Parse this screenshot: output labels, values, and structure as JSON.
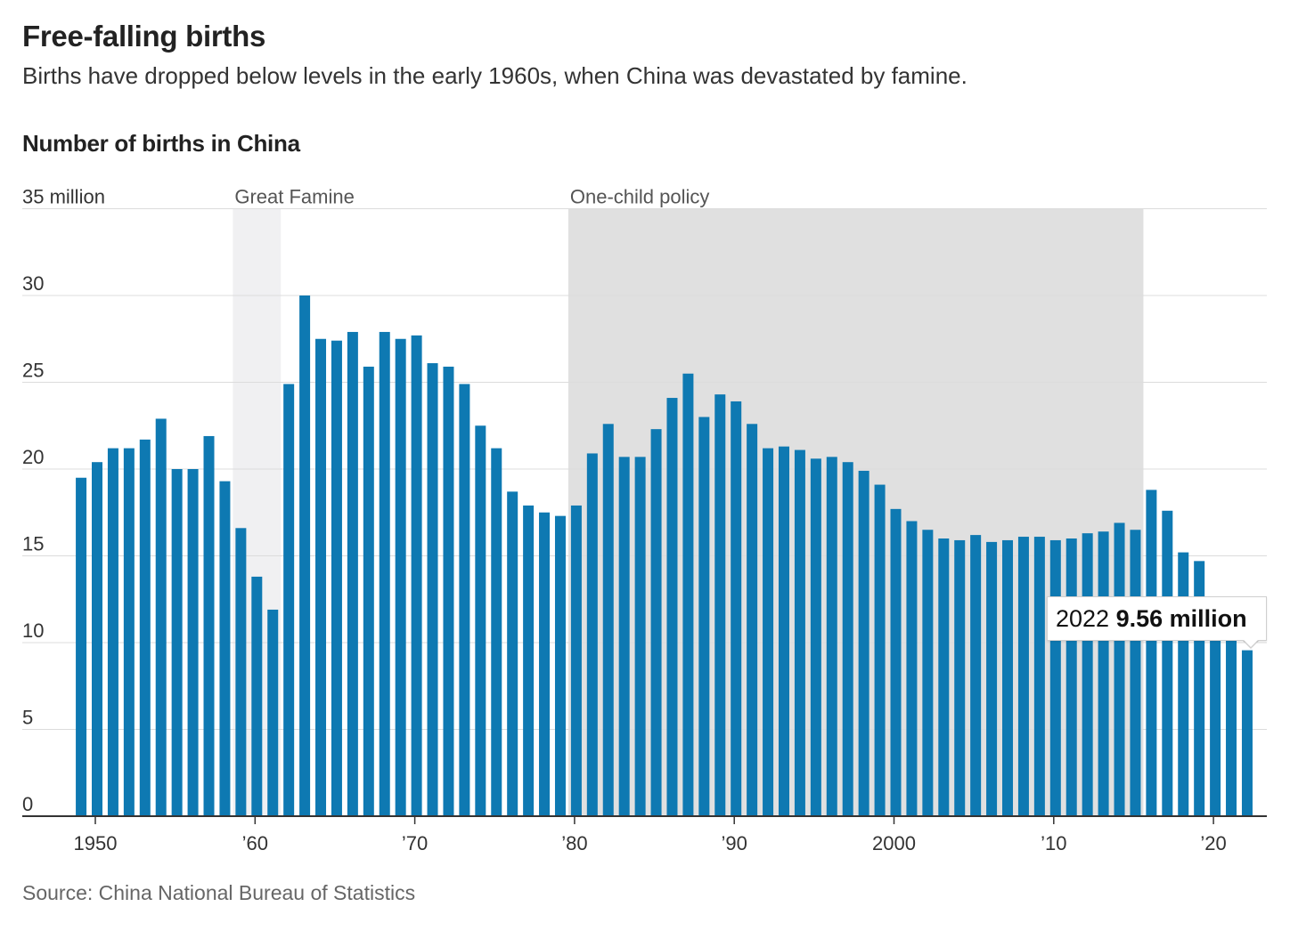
{
  "header": {
    "title": "Free-falling births",
    "subtitle": "Births have dropped below levels in the early 1960s, when China was devastated by famine."
  },
  "chart_title": "Number of births in China",
  "source": "Source: China National Bureau of Statistics",
  "callout": {
    "year": "2022",
    "value": "9.56 million"
  },
  "colors": {
    "bar": "#0e79b2",
    "famine_band": "#f0f0f2",
    "policy_band": "#e0e0e0",
    "grid": "#dcdcdc",
    "axis": "#333333"
  },
  "chart_data": {
    "type": "bar",
    "title": "Number of births in China",
    "xlabel": "",
    "ylabel": "",
    "ylim": [
      0,
      35
    ],
    "y_ticks": [
      0,
      5,
      10,
      15,
      20,
      25,
      30,
      35
    ],
    "y_tick_labels": [
      "0",
      "5",
      "10",
      "15",
      "20",
      "25",
      "30",
      "35 million"
    ],
    "x_ticks": [
      1950,
      1960,
      1970,
      1980,
      1990,
      2000,
      2010,
      2020
    ],
    "x_tick_labels": [
      "1950",
      "’60",
      "’70",
      "’80",
      "’90",
      "2000",
      "’10",
      "’20"
    ],
    "grid": true,
    "highlight_periods": [
      {
        "label": "Great Famine",
        "start": 1959,
        "end": 1961
      },
      {
        "label": "One-child policy",
        "start": 1980,
        "end": 2015
      }
    ],
    "annotation": {
      "year": 2022,
      "value": 9.56,
      "text": "2022 9.56 million"
    },
    "series": [
      {
        "x": [
          1949,
          1950,
          1951,
          1952,
          1953,
          1954,
          1955,
          1956,
          1957,
          1958,
          1959,
          1960,
          1961,
          1962,
          1963,
          1964,
          1965,
          1966,
          1967,
          1968,
          1969,
          1970,
          1971,
          1972,
          1973,
          1974,
          1975,
          1976,
          1977,
          1978,
          1979,
          1980,
          1981,
          1982,
          1983,
          1984,
          1985,
          1986,
          1987,
          1988,
          1989,
          1990,
          1991,
          1992,
          1993,
          1994,
          1995,
          1996,
          1997,
          1998,
          1999,
          2000,
          2001,
          2002,
          2003,
          2004,
          2005,
          2006,
          2007,
          2008,
          2009,
          2010,
          2011,
          2012,
          2013,
          2014,
          2015,
          2016,
          2017,
          2018,
          2019,
          2020,
          2021,
          2022
        ],
        "values": [
          19.5,
          20.4,
          21.2,
          21.2,
          21.7,
          22.9,
          20.0,
          20.0,
          21.9,
          19.3,
          16.6,
          13.8,
          11.9,
          24.9,
          30.0,
          27.5,
          27.4,
          27.9,
          25.9,
          27.9,
          27.5,
          27.7,
          26.1,
          25.9,
          24.9,
          22.5,
          21.2,
          18.7,
          17.9,
          17.5,
          17.3,
          17.9,
          20.9,
          22.6,
          20.7,
          20.7,
          22.3,
          24.1,
          25.5,
          23.0,
          24.3,
          23.9,
          22.6,
          21.2,
          21.3,
          21.1,
          20.6,
          20.7,
          20.4,
          19.9,
          19.1,
          17.7,
          17.0,
          16.5,
          16.0,
          15.9,
          16.2,
          15.8,
          15.9,
          16.1,
          16.1,
          15.9,
          16.0,
          16.3,
          16.4,
          16.9,
          16.5,
          18.8,
          17.6,
          15.2,
          14.7,
          12.0,
          10.6,
          9.56
        ]
      }
    ]
  }
}
